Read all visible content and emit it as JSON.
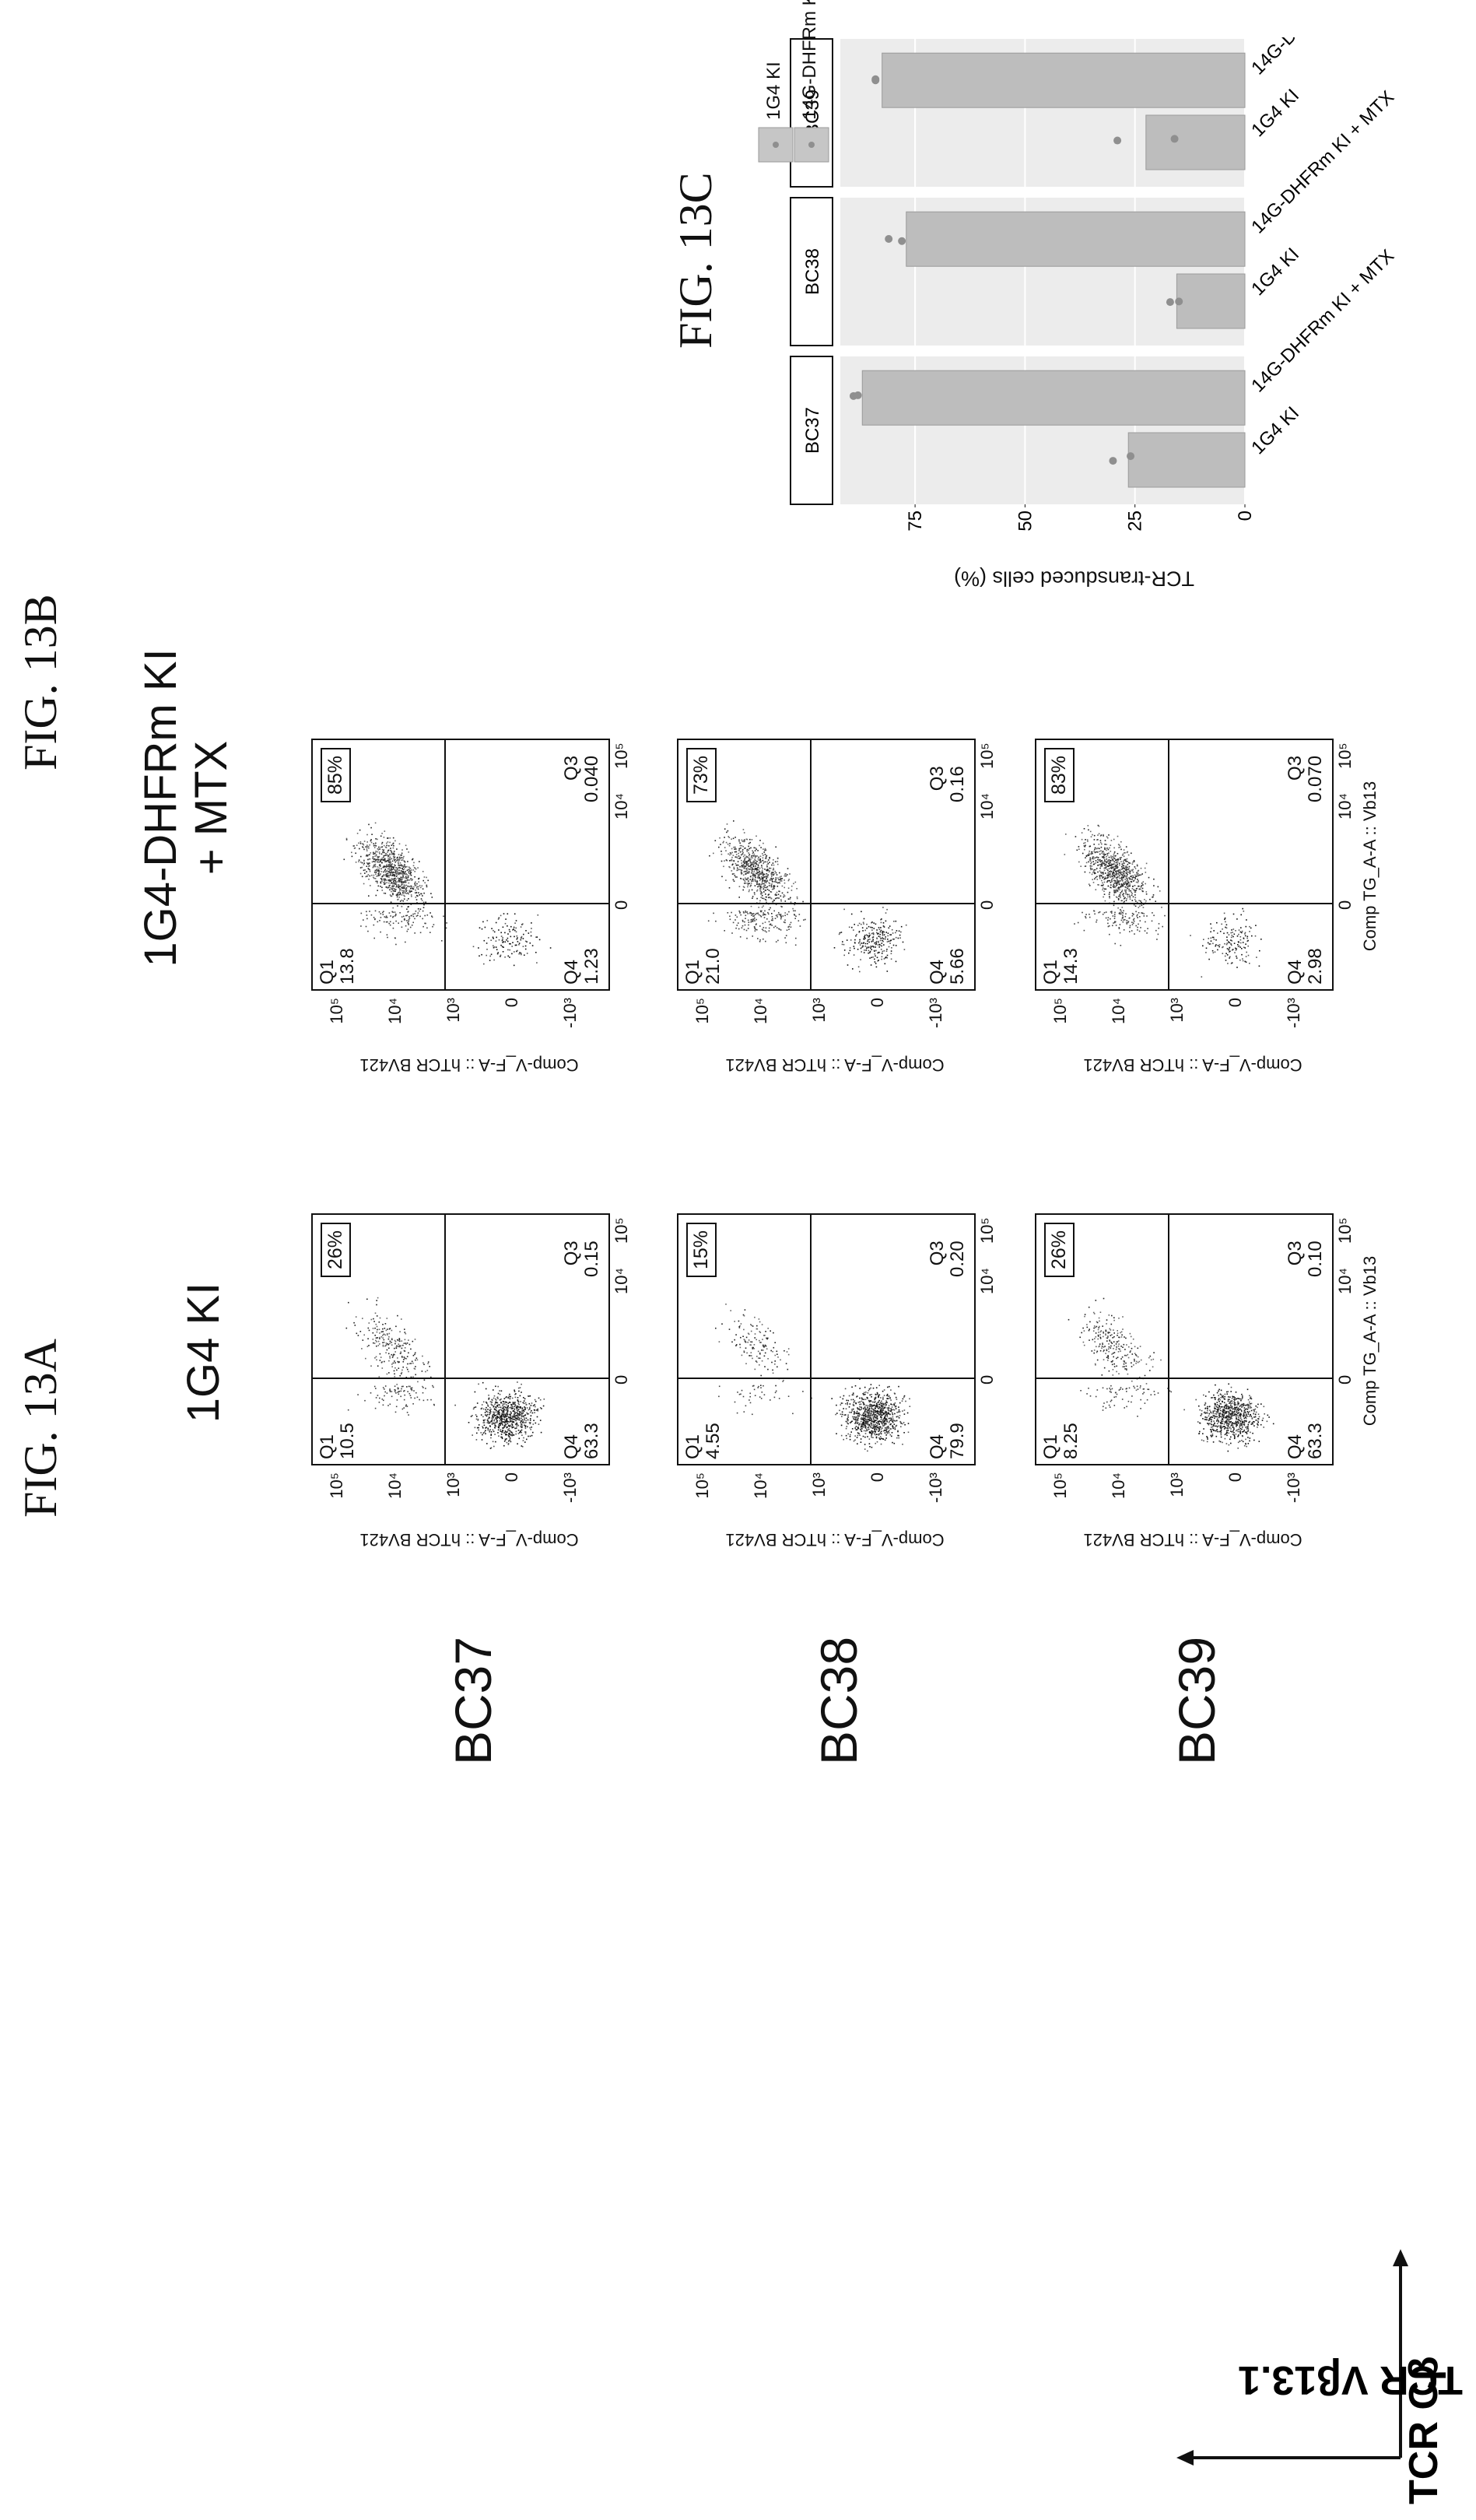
{
  "figure_labels": {
    "a": "FIG. 13A",
    "b": "FIG. 13B",
    "c": "FIG. 13C"
  },
  "column_titles": {
    "col1": "1G4 KI",
    "col2_line1": "1G4-DHFRm KI",
    "col2_line2": "+ MTX"
  },
  "row_labels": [
    "BC37",
    "BC38",
    "BC39"
  ],
  "arrows": {
    "vertical_label": "TCR Vβ13.1",
    "horizontal_label": "TCR Cβ"
  },
  "flow_axes": {
    "ylabel": "Comp-V_F-A :: hTCR BV421",
    "xlabel": "Comp TG_A-A :: Vb13",
    "y_ticks": [
      "10⁵",
      "10⁴",
      "10³",
      "0",
      "-10³"
    ],
    "x_ticks": [
      "0",
      "10⁴",
      "10⁵"
    ]
  },
  "flow_plots": [
    {
      "sample": "BC37",
      "condition": "1G4 KI",
      "badge": "26%",
      "q1_label": "Q1",
      "q1": "10.5",
      "q3_label": "Q3",
      "q3": "0.15",
      "q4_label": "Q4",
      "q4": "63.3",
      "show_x_labels": false
    },
    {
      "sample": "BC37",
      "condition": "1G4-DHFRm KI + MTX",
      "badge": "85%",
      "q1_label": "Q1",
      "q1": "13.8",
      "q3_label": "Q3",
      "q3": "0.040",
      "q4_label": "Q4",
      "q4": "1.23",
      "show_x_labels": false
    },
    {
      "sample": "BC38",
      "condition": "1G4 KI",
      "badge": "15%",
      "q1_label": "Q1",
      "q1": "4.55",
      "q3_label": "Q3",
      "q3": "0.20",
      "q4_label": "Q4",
      "q4": "79.9",
      "show_x_labels": false
    },
    {
      "sample": "BC38",
      "condition": "1G4-DHFRm KI + MTX",
      "badge": "73%",
      "q1_label": "Q1",
      "q1": "21.0",
      "q3_label": "Q3",
      "q3": "0.16",
      "q4_label": "Q4",
      "q4": "5.66",
      "show_x_labels": false
    },
    {
      "sample": "BC39",
      "condition": "1G4 KI",
      "badge": "26%",
      "q1_label": "Q1",
      "q1": "8.25",
      "q3_label": "Q3",
      "q3": "0.10",
      "q4_label": "Q4",
      "q4": "63.3",
      "show_x_labels": true
    },
    {
      "sample": "BC39",
      "condition": "1G4-DHFRm KI + MTX",
      "badge": "83%",
      "q1_label": "Q1",
      "q1": "14.3",
      "q3_label": "Q3",
      "q3": "0.070",
      "q4_label": "Q4",
      "q4": "2.98",
      "show_x_labels": true
    }
  ],
  "chart_data": {
    "type": "bar",
    "ylabel": "TCR-transduced cells (%)",
    "ylim": [
      0,
      92
    ],
    "y_ticks": [
      0,
      25,
      50,
      75
    ],
    "facets": [
      "BC37",
      "BC38",
      "BC39"
    ],
    "categories": [
      "1G4 KI",
      "14G-DHFRm KI + MTX"
    ],
    "values": {
      "BC37": [
        26.5,
        87
      ],
      "BC38": [
        15.5,
        77
      ],
      "BC39": [
        22.5,
        82.5
      ]
    },
    "points": {
      "BC37": [
        [
          30,
          26
        ],
        [
          89,
          88
        ]
      ],
      "BC38": [
        [
          17,
          15
        ],
        [
          81,
          78
        ]
      ],
      "BC39": [
        [
          29,
          16
        ],
        [
          84,
          84
        ]
      ]
    },
    "legend": [
      "1G4 KI",
      "14G-DHFRm KI + MTX"
    ],
    "legend_position": "right",
    "grid": true
  },
  "colors": {
    "bar_fill": "#bdbdbd",
    "panel_bg": "#ececec",
    "grid": "#ffffff",
    "ink": "#111111",
    "dot": "#8f8f8f"
  }
}
